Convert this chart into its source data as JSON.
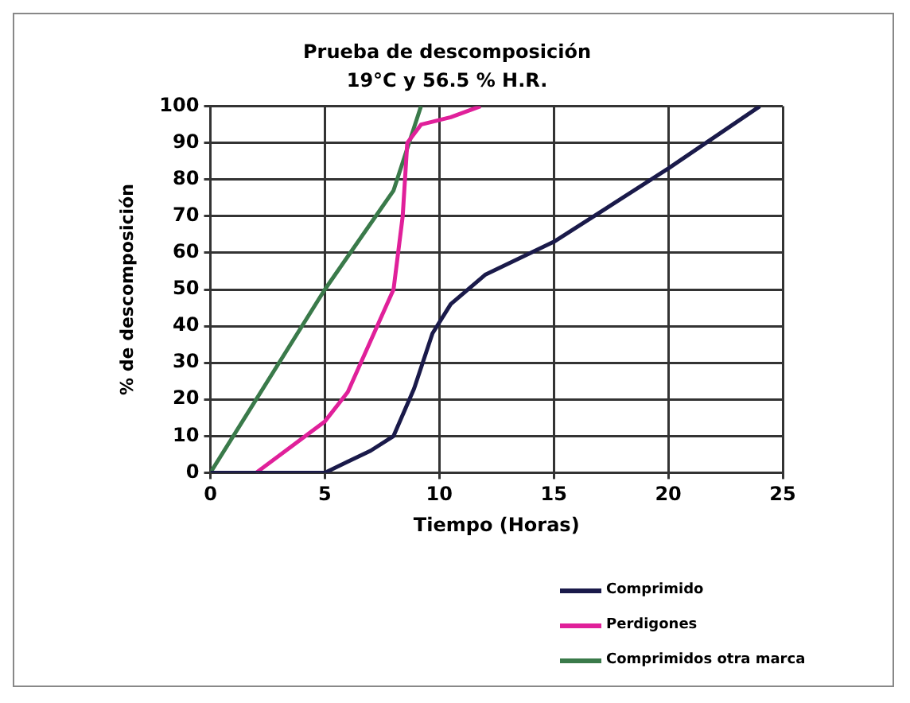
{
  "chart_data": {
    "type": "line",
    "title": "Prueba de descomposición",
    "subtitle": "19°C y 56.5 % H.R.",
    "xlabel": "Tiempo (Horas)",
    "ylabel": "% de descomposición",
    "xlim": [
      0,
      25
    ],
    "xticks": [
      0,
      5,
      10,
      15,
      20,
      25
    ],
    "ylim": [
      0,
      100
    ],
    "yticks": [
      0,
      10,
      20,
      30,
      40,
      50,
      60,
      70,
      80,
      90,
      100
    ],
    "grid": true,
    "legend": "bottom right",
    "marker": "none",
    "series": [
      {
        "name": "Comprimido",
        "color": "#1a1a4a",
        "x": [
          0,
          5,
          6,
          7,
          8,
          8.9,
          9.7,
          10.5,
          12,
          15,
          20,
          24
        ],
        "values": [
          0,
          0,
          3,
          6,
          10,
          23,
          38,
          46,
          54,
          63,
          83,
          100
        ]
      },
      {
        "name": "Perdigones",
        "color": "#e0209a",
        "x": [
          2,
          3.5,
          5,
          6,
          7,
          8,
          8.4,
          8.6,
          9.2,
          10.5,
          11.8
        ],
        "values": [
          0,
          7,
          14,
          22,
          36,
          50,
          70,
          90,
          95,
          97,
          100
        ]
      },
      {
        "name": "Comprimidos otra marca",
        "color": "#3a7a4a",
        "x": [
          0,
          5,
          8,
          9.2
        ],
        "values": [
          0,
          50,
          77,
          100
        ]
      }
    ]
  }
}
